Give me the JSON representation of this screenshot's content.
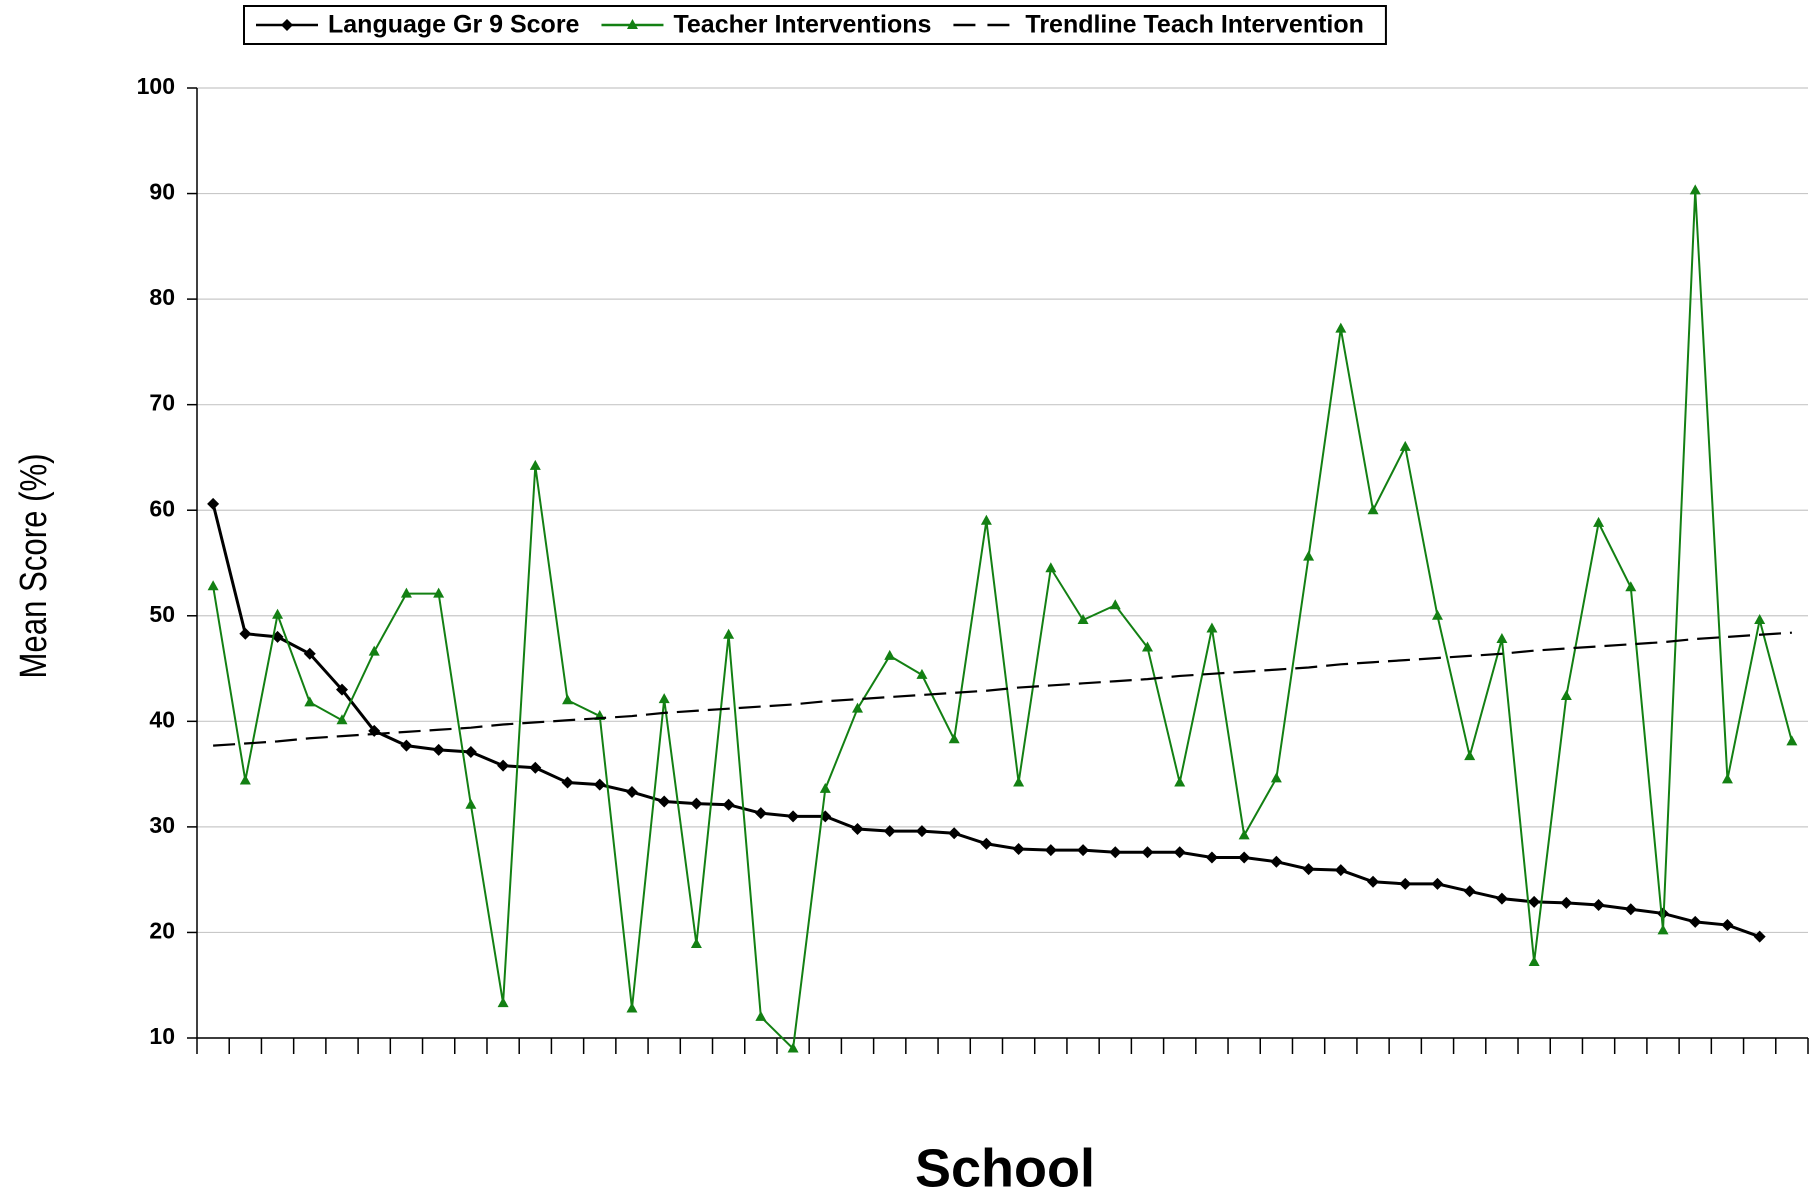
{
  "chart_data": {
    "type": "line",
    "x_label": "School",
    "y_label": "Mean Score (%)",
    "categories": [
      null,
      null,
      null,
      null,
      null,
      null,
      null,
      null,
      null,
      null,
      null,
      null,
      null,
      null,
      null,
      null,
      null,
      null,
      null,
      null,
      null,
      null,
      null,
      null,
      null,
      null,
      null,
      null,
      null,
      null,
      null,
      null,
      null,
      null,
      null,
      null,
      null,
      null,
      null,
      null,
      null,
      null,
      null,
      null,
      null,
      null,
      null,
      null,
      null,
      null
    ],
    "series": [
      {
        "name": "Language Gr 9 Score",
        "color": "#000000",
        "marker": "diamond",
        "dash": false,
        "values": [
          60.6,
          48.3,
          48.0,
          46.4,
          43.0,
          39.1,
          37.7,
          37.3,
          37.1,
          35.8,
          35.6,
          34.2,
          34.0,
          33.3,
          32.4,
          32.2,
          32.1,
          31.3,
          31.0,
          31.0,
          29.8,
          29.6,
          29.6,
          29.4,
          28.4,
          27.9,
          27.8,
          27.8,
          27.6,
          27.6,
          27.6,
          27.1,
          27.1,
          26.7,
          26.0,
          25.9,
          24.8,
          24.6,
          24.6,
          23.9,
          23.2,
          22.9,
          22.8,
          22.6,
          22.2,
          21.8,
          21.0,
          20.7,
          19.6,
          null
        ]
      },
      {
        "name": "Teacher Interventions",
        "color": "#138013",
        "marker": "triangle",
        "dash": false,
        "values": [
          52.8,
          34.4,
          50.1,
          41.8,
          40.1,
          46.6,
          52.1,
          52.1,
          32.1,
          13.3,
          64.2,
          42.0,
          40.5,
          12.8,
          42.1,
          18.9,
          48.2,
          12.0,
          9.0,
          33.6,
          41.2,
          46.2,
          44.4,
          38.3,
          59.0,
          34.2,
          54.5,
          49.6,
          51.0,
          47.0,
          34.2,
          48.8,
          29.2,
          34.6,
          55.6,
          77.2,
          60.0,
          66.0,
          50.0,
          36.7,
          47.8,
          17.2,
          42.4,
          58.8,
          52.7,
          20.2,
          90.3,
          34.5,
          49.6,
          38.1
        ]
      },
      {
        "name": "Trendline Teach Intervention",
        "color": "#000000",
        "marker": "none",
        "dash": true,
        "values": [
          37.7,
          37.9,
          38.1,
          38.4,
          38.6,
          38.8,
          39.0,
          39.2,
          39.4,
          39.7,
          39.9,
          40.1,
          40.3,
          40.5,
          40.8,
          41.0,
          41.2,
          41.4,
          41.6,
          41.9,
          42.1,
          42.3,
          42.5,
          42.7,
          42.9,
          43.2,
          43.4,
          43.6,
          43.8,
          44.0,
          44.3,
          44.5,
          44.7,
          44.9,
          45.1,
          45.4,
          45.6,
          45.8,
          46.0,
          46.2,
          46.4,
          46.7,
          46.9,
          47.1,
          47.3,
          47.5,
          47.8,
          48.0,
          48.2,
          48.4
        ]
      }
    ],
    "ylim": [
      10,
      100
    ],
    "yticks": [
      10,
      20,
      30,
      40,
      50,
      60,
      70,
      80,
      90,
      100
    ],
    "grid": true,
    "legend": "top"
  }
}
